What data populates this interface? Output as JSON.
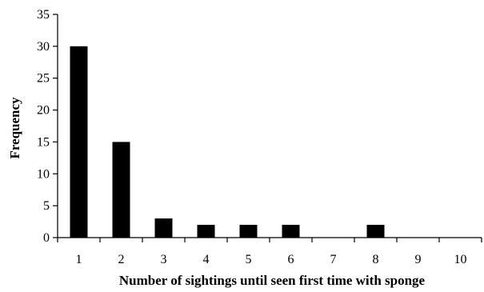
{
  "chart_data": {
    "type": "bar",
    "categories": [
      "1",
      "2",
      "3",
      "4",
      "5",
      "6",
      "7",
      "8",
      "9",
      "10"
    ],
    "values": [
      30,
      15,
      3,
      2,
      2,
      2,
      0,
      2,
      0,
      0
    ],
    "xlabel": "Number of sightings until seen first time with sponge",
    "ylabel": "Frequency",
    "ylim": [
      0,
      35
    ],
    "yticks": [
      "0",
      "5",
      "10",
      "15",
      "20",
      "25",
      "30",
      "35"
    ],
    "grid": false,
    "bar_color": "#000000"
  }
}
